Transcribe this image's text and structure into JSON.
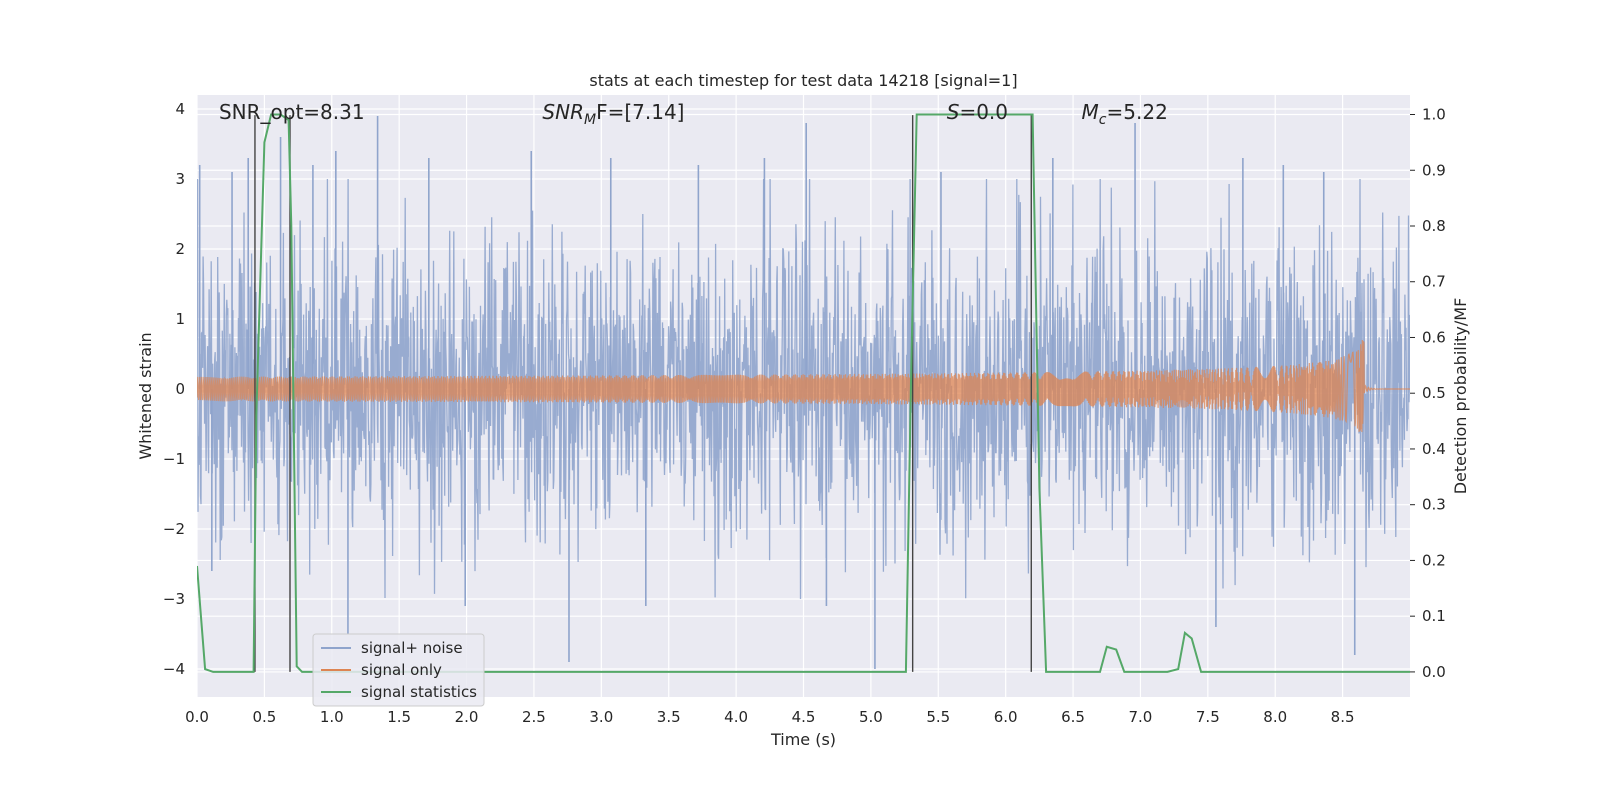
{
  "chart_data": {
    "type": "line",
    "title": "stats at each timestep for test data 14218 [signal=1]",
    "xlabel": "Time (s)",
    "ylabel": "Whitened strain",
    "ylabel_right": "Detection probability/MF",
    "xlim": [
      0.0,
      9.0
    ],
    "ylim": [
      -4.4,
      4.2
    ],
    "ylim_right": [
      -0.045,
      1.035
    ],
    "xticks": [
      "0.0",
      "0.5",
      "1.0",
      "1.5",
      "2.0",
      "2.5",
      "3.0",
      "3.5",
      "4.0",
      "4.5",
      "5.0",
      "5.5",
      "6.0",
      "6.5",
      "7.0",
      "7.5",
      "8.0",
      "8.5"
    ],
    "yticks": [
      "4",
      "3",
      "2",
      "1",
      "0",
      "−1",
      "−2",
      "−3",
      "−4"
    ],
    "yticks_right": [
      "1.0",
      "0.9",
      "0.8",
      "0.7",
      "0.6",
      "0.5",
      "0.4",
      "0.3",
      "0.2",
      "0.1",
      "0.0"
    ],
    "grid": true,
    "legend_position": "lower-left",
    "annotations": [
      {
        "text": "SNR_opt=8.31",
        "x": 0.2,
        "y": 4.0
      },
      {
        "text": "SNR",
        "sub": "M",
        "rest": "F=[7.14]",
        "x": 2.6,
        "y": 4.0
      },
      {
        "text": "S",
        "rest": "=0.0",
        "x": 5.6,
        "y": 4.0
      },
      {
        "text": "M",
        "sub": "c",
        "rest": "=5.22",
        "x": 6.6,
        "y": 4.0
      }
    ],
    "vlines": [
      0.43,
      0.69,
      5.31,
      6.19
    ],
    "series": [
      {
        "name": "signal+ noise",
        "color": "#8fa4cc",
        "kind": "noise",
        "amplitude_sigma": 1.1,
        "spikes": [
          {
            "x": 0.02,
            "y": 3.2
          },
          {
            "x": 0.11,
            "y": -2.6
          },
          {
            "x": 0.26,
            "y": 3.1
          },
          {
            "x": 0.38,
            "y": 3.3
          },
          {
            "x": 0.62,
            "y": 3.6
          },
          {
            "x": 0.86,
            "y": 3.2
          },
          {
            "x": 1.03,
            "y": 3.4
          },
          {
            "x": 1.12,
            "y": -3.5
          },
          {
            "x": 1.34,
            "y": 3.9
          },
          {
            "x": 1.72,
            "y": 3.3
          },
          {
            "x": 1.99,
            "y": -3.1
          },
          {
            "x": 2.48,
            "y": 3.4
          },
          {
            "x": 2.76,
            "y": -3.9
          },
          {
            "x": 3.07,
            "y": 3.3
          },
          {
            "x": 3.33,
            "y": -3.1
          },
          {
            "x": 3.72,
            "y": 3.2
          },
          {
            "x": 4.21,
            "y": 3.3
          },
          {
            "x": 4.52,
            "y": 3.8
          },
          {
            "x": 4.67,
            "y": -3.1
          },
          {
            "x": 5.03,
            "y": -4.0
          },
          {
            "x": 5.52,
            "y": 3.1
          },
          {
            "x": 6.35,
            "y": 3.3
          },
          {
            "x": 6.96,
            "y": 3.8
          },
          {
            "x": 7.56,
            "y": -3.4
          },
          {
            "x": 8.06,
            "y": 3.2
          },
          {
            "x": 8.59,
            "y": -3.8
          },
          {
            "x": 8.36,
            "y": 3.1
          },
          {
            "x": 7.76,
            "y": 3.3
          }
        ]
      },
      {
        "name": "signal only",
        "color": "#dd8452",
        "kind": "chirp",
        "merger_time": 8.66,
        "peak_amplitude": 0.8
      },
      {
        "name": "signal statistics",
        "color": "#55a868",
        "axis": "right",
        "x": [
          0.0,
          0.06,
          0.12,
          0.18,
          0.24,
          0.3,
          0.36,
          0.42,
          0.44,
          0.5,
          0.55,
          0.62,
          0.68,
          0.7,
          0.74,
          0.78,
          0.84,
          0.9,
          1.5,
          2.0,
          3.0,
          4.0,
          5.0,
          5.26,
          5.3,
          5.34,
          5.5,
          6.0,
          6.2,
          6.25,
          6.3,
          6.4,
          6.7,
          6.75,
          6.82,
          6.88,
          7.0,
          7.2,
          7.28,
          7.33,
          7.38,
          7.45,
          7.5,
          7.6,
          8.0,
          8.5,
          9.0
        ],
        "y": [
          0.19,
          0.005,
          0.0,
          0.0,
          0.0,
          0.0,
          0.0,
          0.0,
          0.46,
          0.95,
          1.0,
          1.0,
          0.99,
          0.8,
          0.01,
          0.0,
          0.0,
          0.0,
          0.0,
          0.0,
          0.0,
          0.0,
          0.0,
          0.0,
          0.55,
          1.0,
          1.0,
          1.0,
          1.0,
          0.33,
          0.0,
          0.0,
          0.0,
          0.045,
          0.04,
          0.0,
          0.0,
          0.0,
          0.005,
          0.07,
          0.06,
          0.0,
          0.0,
          0.0,
          0.0,
          0.0,
          0.0
        ]
      }
    ]
  }
}
